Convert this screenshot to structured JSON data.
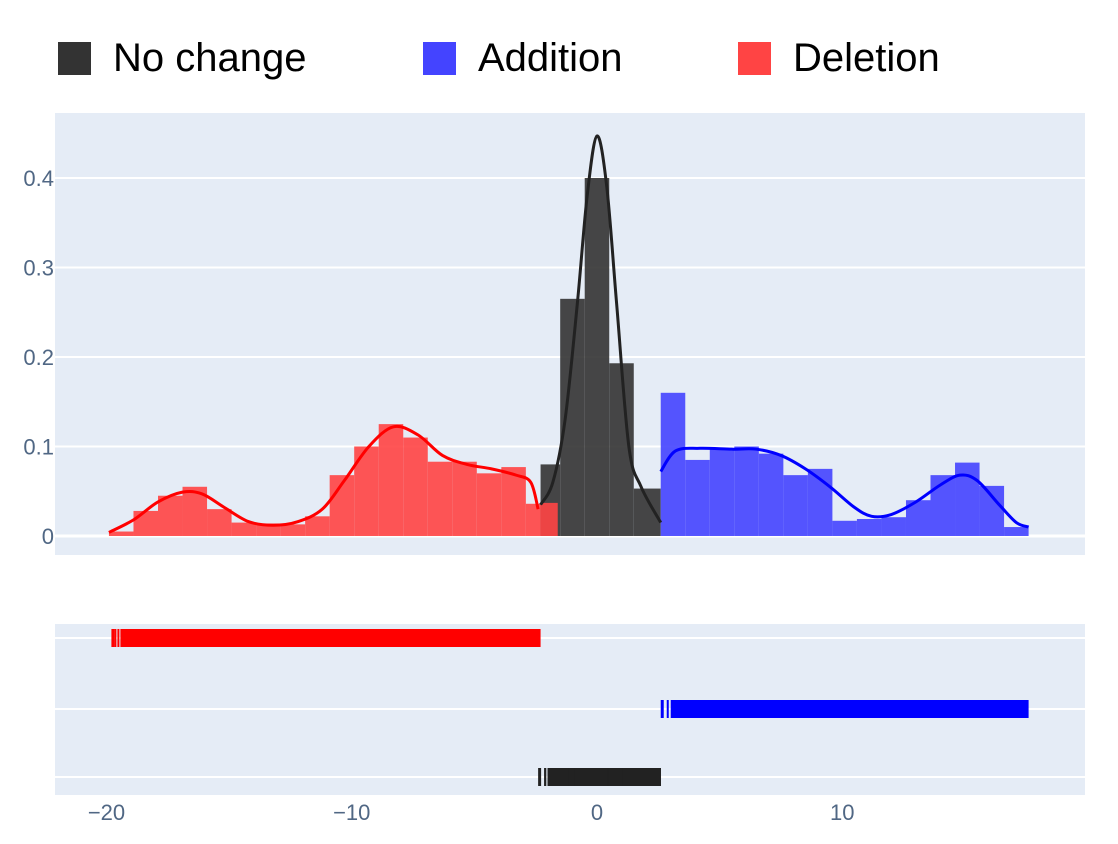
{
  "chart_data": {
    "type": "histogram",
    "xlabel": "",
    "ylabel": "",
    "xlim": [
      -22.1,
      19.9
    ],
    "ylim": [
      0,
      0.46
    ],
    "x_ticks": [
      {
        "value": -20,
        "label": "−20"
      },
      {
        "value": -10,
        "label": "−10"
      },
      {
        "value": 0,
        "label": "0"
      },
      {
        "value": 10,
        "label": "10"
      }
    ],
    "y_ticks": [
      {
        "value": 0,
        "label": "0"
      },
      {
        "value": 0.1,
        "label": "0.1"
      },
      {
        "value": 0.2,
        "label": "0.2"
      },
      {
        "value": 0.3,
        "label": "0.3"
      },
      {
        "value": 0.4,
        "label": "0.4"
      }
    ],
    "grid": true,
    "legend_position": "top",
    "series": [
      {
        "name": "No change",
        "color": "#222222",
        "bar_color": "#333333",
        "bins": [
          {
            "x0": -2.3,
            "x1": -1.5,
            "y": 0.08
          },
          {
            "x0": -1.5,
            "x1": -0.5,
            "y": 0.265
          },
          {
            "x0": -0.5,
            "x1": 0.5,
            "y": 0.4
          },
          {
            "x0": 0.5,
            "x1": 1.5,
            "y": 0.193
          },
          {
            "x0": 1.5,
            "x1": 2.6,
            "y": 0.053
          }
        ],
        "curve": [
          [
            -2.3,
            0.035
          ],
          [
            -1.8,
            0.06
          ],
          [
            -1.3,
            0.13
          ],
          [
            -0.8,
            0.26
          ],
          [
            -0.4,
            0.38
          ],
          [
            0,
            0.447
          ],
          [
            0.4,
            0.39
          ],
          [
            0.8,
            0.26
          ],
          [
            1.3,
            0.1
          ],
          [
            1.8,
            0.055
          ],
          [
            2.6,
            0.015
          ]
        ],
        "rug": {
          "x_min": -2.4,
          "x_max": 2.6,
          "row": 0
        }
      },
      {
        "name": "Addition",
        "color": "#0000ff",
        "bar_color": "#4444ff",
        "bins": [
          {
            "x0": 2.6,
            "x1": 3.6,
            "y": 0.16
          },
          {
            "x0": 3.6,
            "x1": 4.6,
            "y": 0.085
          },
          {
            "x0": 4.6,
            "x1": 5.6,
            "y": 0.098
          },
          {
            "x0": 5.6,
            "x1": 6.6,
            "y": 0.1
          },
          {
            "x0": 6.6,
            "x1": 7.6,
            "y": 0.092
          },
          {
            "x0": 7.6,
            "x1": 8.6,
            "y": 0.068
          },
          {
            "x0": 8.6,
            "x1": 9.6,
            "y": 0.075
          },
          {
            "x0": 9.6,
            "x1": 10.6,
            "y": 0.017
          },
          {
            "x0": 10.6,
            "x1": 11.6,
            "y": 0.019
          },
          {
            "x0": 11.6,
            "x1": 12.6,
            "y": 0.021
          },
          {
            "x0": 12.6,
            "x1": 13.6,
            "y": 0.04
          },
          {
            "x0": 13.6,
            "x1": 14.6,
            "y": 0.068
          },
          {
            "x0": 14.6,
            "x1": 15.6,
            "y": 0.082
          },
          {
            "x0": 15.6,
            "x1": 16.6,
            "y": 0.056
          },
          {
            "x0": 16.6,
            "x1": 17.6,
            "y": 0.01
          }
        ],
        "curve": [
          [
            2.6,
            0.072
          ],
          [
            3.2,
            0.095
          ],
          [
            4.2,
            0.098
          ],
          [
            5.5,
            0.097
          ],
          [
            6.5,
            0.097
          ],
          [
            7.5,
            0.09
          ],
          [
            8.5,
            0.075
          ],
          [
            9.5,
            0.055
          ],
          [
            10.5,
            0.032
          ],
          [
            11.2,
            0.022
          ],
          [
            12,
            0.024
          ],
          [
            13,
            0.038
          ],
          [
            14,
            0.057
          ],
          [
            14.8,
            0.068
          ],
          [
            15.5,
            0.062
          ],
          [
            16.4,
            0.035
          ],
          [
            17.1,
            0.015
          ],
          [
            17.6,
            0.01
          ]
        ],
        "rug": {
          "x_min": 2.6,
          "x_max": 17.6,
          "row": 1
        }
      },
      {
        "name": "Deletion",
        "color": "#ff0000",
        "bar_color": "#ff4444",
        "bins": [
          {
            "x0": -19.9,
            "x1": -18.9,
            "y": 0.005
          },
          {
            "x0": -18.9,
            "x1": -17.9,
            "y": 0.028
          },
          {
            "x0": -17.9,
            "x1": -16.9,
            "y": 0.045
          },
          {
            "x0": -16.9,
            "x1": -15.9,
            "y": 0.055
          },
          {
            "x0": -15.9,
            "x1": -14.9,
            "y": 0.03
          },
          {
            "x0": -14.9,
            "x1": -13.9,
            "y": 0.015
          },
          {
            "x0": -13.9,
            "x1": -12.9,
            "y": 0.014
          },
          {
            "x0": -12.9,
            "x1": -11.9,
            "y": 0.013
          },
          {
            "x0": -11.9,
            "x1": -10.9,
            "y": 0.022
          },
          {
            "x0": -10.9,
            "x1": -9.9,
            "y": 0.068
          },
          {
            "x0": -9.9,
            "x1": -8.9,
            "y": 0.1
          },
          {
            "x0": -8.9,
            "x1": -7.9,
            "y": 0.125
          },
          {
            "x0": -7.9,
            "x1": -6.9,
            "y": 0.11
          },
          {
            "x0": -6.9,
            "x1": -5.9,
            "y": 0.083
          },
          {
            "x0": -5.9,
            "x1": -4.9,
            "y": 0.083
          },
          {
            "x0": -4.9,
            "x1": -3.9,
            "y": 0.07
          },
          {
            "x0": -3.9,
            "x1": -2.9,
            "y": 0.077
          },
          {
            "x0": -2.9,
            "x1": -2.3,
            "y": 0.036
          },
          {
            "x0": -2.3,
            "x1": -1.6,
            "y": 0.037
          }
        ],
        "curve": [
          [
            -19.9,
            0.004
          ],
          [
            -18.9,
            0.018
          ],
          [
            -17.9,
            0.038
          ],
          [
            -16.9,
            0.049
          ],
          [
            -16.1,
            0.047
          ],
          [
            -15.2,
            0.032
          ],
          [
            -14.2,
            0.016
          ],
          [
            -13.2,
            0.012
          ],
          [
            -12.2,
            0.016
          ],
          [
            -11.2,
            0.03
          ],
          [
            -10.3,
            0.062
          ],
          [
            -9.3,
            0.1
          ],
          [
            -8.3,
            0.122
          ],
          [
            -7.3,
            0.113
          ],
          [
            -6.3,
            0.09
          ],
          [
            -5.3,
            0.08
          ],
          [
            -4.3,
            0.075
          ],
          [
            -3.3,
            0.068
          ],
          [
            -2.7,
            0.06
          ],
          [
            -2.4,
            0.03
          ]
        ],
        "rug": {
          "x_min": -19.8,
          "x_max": -2.3,
          "row": 2
        }
      }
    ]
  }
}
